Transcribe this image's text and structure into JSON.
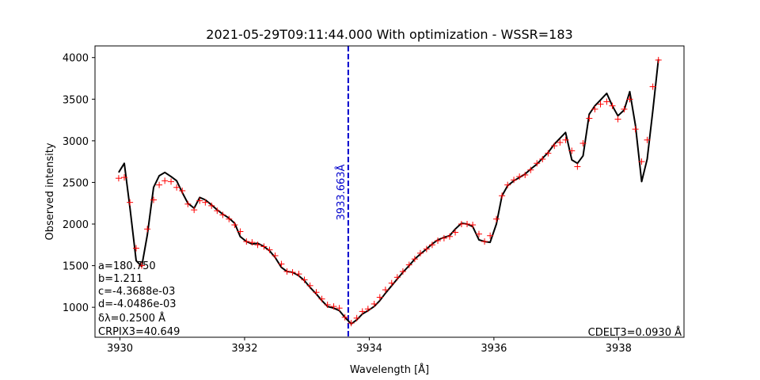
{
  "chart_data": {
    "type": "line",
    "title": "2021-05-29T09:11:44.000 With optimization - WSSR=183",
    "xlabel": "Wavelength [Å]",
    "ylabel": "Observed intensity",
    "xlim": [
      3929.6,
      3939.05
    ],
    "ylim": [
      640,
      4140
    ],
    "grid": false,
    "x_ticks": [
      3930,
      3932,
      3934,
      3936,
      3938
    ],
    "x_tick_labels": [
      "3930",
      "3932",
      "3934",
      "3936",
      "3938"
    ],
    "y_ticks": [
      1000,
      1500,
      2000,
      2500,
      3000,
      3500,
      4000
    ],
    "y_tick_labels": [
      "1000",
      "1500",
      "2000",
      "2500",
      "3000",
      "3500",
      "4000"
    ],
    "vline": {
      "x": 3933.663,
      "label": "3933.663Å",
      "color": "#0000cc"
    },
    "series": [
      {
        "style": "line",
        "color": "#000000",
        "x": [
          3929.98,
          3930.07,
          3930.16,
          3930.26,
          3930.35,
          3930.44,
          3930.54,
          3930.63,
          3930.72,
          3930.82,
          3930.91,
          3931.0,
          3931.09,
          3931.19,
          3931.28,
          3931.37,
          3931.47,
          3931.56,
          3931.65,
          3931.75,
          3931.84,
          3931.93,
          3932.03,
          3932.12,
          3932.21,
          3932.31,
          3932.4,
          3932.49,
          3932.59,
          3932.68,
          3932.77,
          3932.87,
          3932.96,
          3933.05,
          3933.15,
          3933.24,
          3933.33,
          3933.43,
          3933.52,
          3933.61,
          3933.71,
          3933.8,
          3933.89,
          3933.98,
          3934.08,
          3934.17,
          3934.26,
          3934.36,
          3934.45,
          3934.54,
          3934.64,
          3934.73,
          3934.82,
          3934.92,
          3935.01,
          3935.1,
          3935.2,
          3935.29,
          3935.38,
          3935.48,
          3935.57,
          3935.66,
          3935.76,
          3935.85,
          3935.94,
          3936.04,
          3936.13,
          3936.22,
          3936.32,
          3936.41,
          3936.5,
          3936.59,
          3936.69,
          3936.78,
          3936.87,
          3936.97,
          3937.06,
          3937.15,
          3937.25,
          3937.34,
          3937.43,
          3937.53,
          3937.62,
          3937.71,
          3937.81,
          3937.9,
          3937.99,
          3938.09,
          3938.18,
          3938.27,
          3938.37,
          3938.46,
          3938.55,
          3938.64
        ],
        "y": [
          2620,
          2730,
          2200,
          1560,
          1490,
          1870,
          2440,
          2580,
          2620,
          2570,
          2520,
          2380,
          2250,
          2190,
          2320,
          2290,
          2230,
          2170,
          2120,
          2070,
          2010,
          1850,
          1790,
          1760,
          1770,
          1730,
          1680,
          1600,
          1480,
          1430,
          1420,
          1380,
          1320,
          1240,
          1160,
          1080,
          1010,
          990,
          960,
          880,
          800,
          850,
          920,
          960,
          1010,
          1080,
          1170,
          1260,
          1340,
          1420,
          1500,
          1580,
          1640,
          1700,
          1760,
          1810,
          1840,
          1860,
          1940,
          2010,
          2000,
          1970,
          1810,
          1790,
          1780,
          2000,
          2340,
          2460,
          2520,
          2560,
          2600,
          2660,
          2720,
          2790,
          2860,
          2960,
          3030,
          3100,
          2770,
          2730,
          2820,
          3320,
          3420,
          3490,
          3570,
          3420,
          3300,
          3370,
          3590,
          3190,
          2510,
          2780,
          3360,
          3980
        ]
      },
      {
        "style": "marker",
        "marker": "+",
        "color": "#ff0000",
        "x": [
          3929.98,
          3930.07,
          3930.16,
          3930.26,
          3930.35,
          3930.44,
          3930.54,
          3930.63,
          3930.72,
          3930.82,
          3930.91,
          3931.0,
          3931.09,
          3931.19,
          3931.28,
          3931.37,
          3931.47,
          3931.56,
          3931.65,
          3931.75,
          3931.84,
          3931.93,
          3932.03,
          3932.12,
          3932.21,
          3932.31,
          3932.4,
          3932.49,
          3932.59,
          3932.68,
          3932.77,
          3932.87,
          3932.96,
          3933.05,
          3933.15,
          3933.24,
          3933.33,
          3933.43,
          3933.52,
          3933.61,
          3933.71,
          3933.8,
          3933.89,
          3933.98,
          3934.08,
          3934.17,
          3934.26,
          3934.36,
          3934.45,
          3934.54,
          3934.64,
          3934.73,
          3934.82,
          3934.92,
          3935.01,
          3935.1,
          3935.2,
          3935.29,
          3935.38,
          3935.48,
          3935.57,
          3935.66,
          3935.76,
          3935.85,
          3935.94,
          3936.04,
          3936.13,
          3936.22,
          3936.32,
          3936.41,
          3936.5,
          3936.59,
          3936.69,
          3936.78,
          3936.87,
          3936.97,
          3937.06,
          3937.15,
          3937.25,
          3937.34,
          3937.43,
          3937.53,
          3937.62,
          3937.71,
          3937.81,
          3937.9,
          3937.99,
          3938.09,
          3938.18,
          3938.27,
          3938.37,
          3938.46,
          3938.55,
          3938.64
        ],
        "y": [
          2550,
          2560,
          2260,
          1710,
          1500,
          1940,
          2290,
          2470,
          2520,
          2510,
          2440,
          2400,
          2240,
          2170,
          2280,
          2260,
          2220,
          2160,
          2110,
          2060,
          1990,
          1910,
          1790,
          1780,
          1750,
          1730,
          1690,
          1620,
          1520,
          1430,
          1420,
          1400,
          1330,
          1260,
          1180,
          1100,
          1030,
          1010,
          990,
          880,
          810,
          870,
          950,
          980,
          1040,
          1120,
          1210,
          1290,
          1360,
          1430,
          1510,
          1580,
          1650,
          1700,
          1750,
          1800,
          1830,
          1850,
          1900,
          2000,
          2000,
          1990,
          1880,
          1790,
          1860,
          2060,
          2340,
          2470,
          2530,
          2570,
          2590,
          2650,
          2730,
          2780,
          2850,
          2940,
          2980,
          3010,
          2880,
          2690,
          2970,
          3270,
          3380,
          3440,
          3470,
          3420,
          3260,
          3380,
          3500,
          3140,
          2750,
          3010,
          3650,
          3970
        ]
      }
    ]
  },
  "annotations": {
    "params": [
      "a=180.750",
      "b=1.211",
      "c=-4.3688e-03",
      "d=-4.0486e-03",
      "δλ=0.2500 Å",
      "CRPIX3=40.649"
    ],
    "cdelt": "CDELT3=0.0930 Å"
  }
}
